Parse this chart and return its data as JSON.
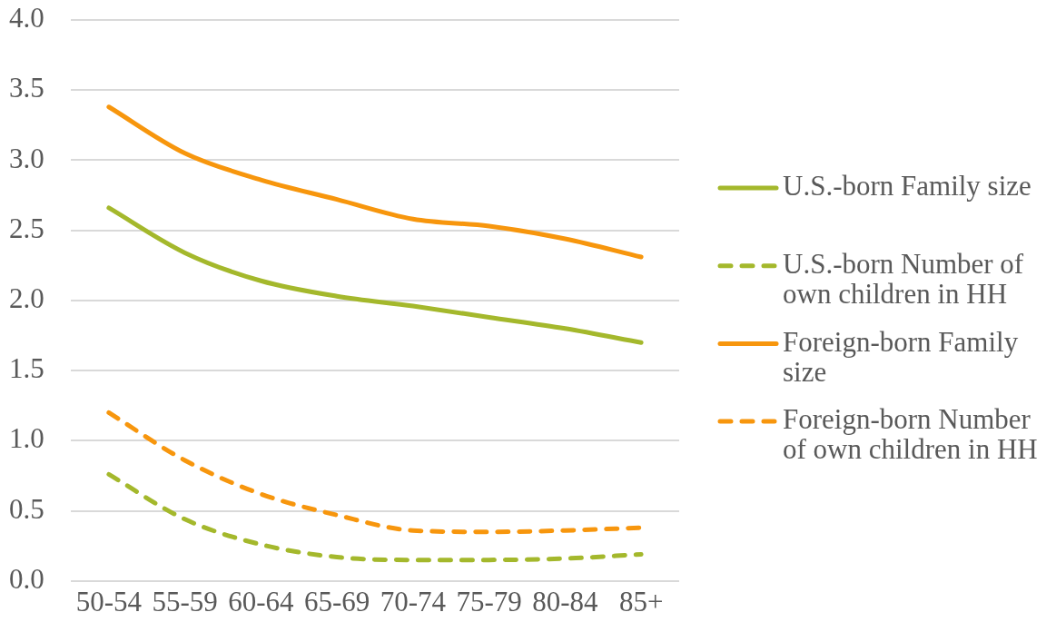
{
  "chart_data": {
    "type": "line",
    "categories": [
      "50-54",
      "55-59",
      "60-64",
      "65-69",
      "70-74",
      "75-79",
      "80-84",
      "85+"
    ],
    "series": [
      {
        "name": "U.S.-born Family size",
        "color": "#a4b82c",
        "line_style": "solid",
        "values": [
          2.66,
          2.34,
          2.14,
          2.03,
          1.96,
          1.88,
          1.8,
          1.7
        ]
      },
      {
        "name": "U.S.-born Number of own children in HH",
        "color": "#a4b82c",
        "line_style": "dashed",
        "values": [
          0.76,
          0.44,
          0.26,
          0.17,
          0.15,
          0.15,
          0.16,
          0.19
        ]
      },
      {
        "name": "Foreign-born Family size",
        "color": "#f7960d",
        "line_style": "solid",
        "values": [
          3.38,
          3.05,
          2.86,
          2.72,
          2.58,
          2.53,
          2.44,
          2.31
        ]
      },
      {
        "name": "Foreign-born Number of own children in HH",
        "color": "#f7960d",
        "line_style": "dashed",
        "values": [
          1.2,
          0.86,
          0.62,
          0.47,
          0.36,
          0.35,
          0.36,
          0.38
        ]
      }
    ],
    "ylim": [
      0,
      4
    ],
    "yticks": [
      {
        "value": 0,
        "label": "0.0"
      },
      {
        "value": 0.5,
        "label": "0.5"
      },
      {
        "value": 1,
        "label": "1.0"
      },
      {
        "value": 1.5,
        "label": "1.5"
      },
      {
        "value": 2,
        "label": "2.0"
      },
      {
        "value": 2.5,
        "label": "2.5"
      },
      {
        "value": 3,
        "label": "3.0"
      },
      {
        "value": 3.5,
        "label": "3.5"
      },
      {
        "value": 4,
        "label": "4.0"
      }
    ],
    "grid": "y",
    "legend": "right",
    "marker": "none"
  }
}
